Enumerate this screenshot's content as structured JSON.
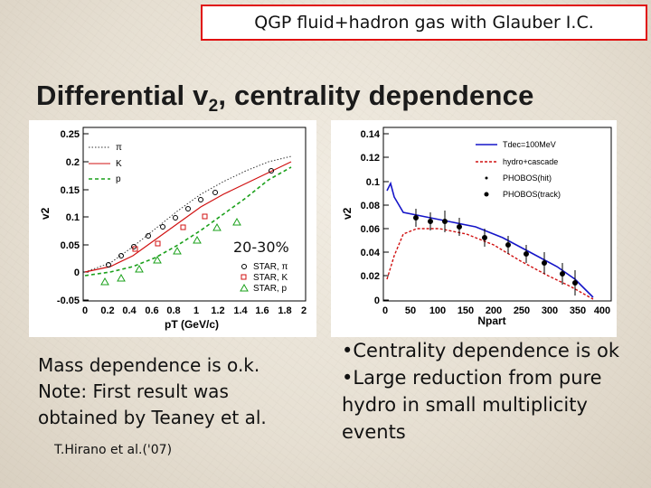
{
  "top_tag": "QGP fluid+hadron gas with Glauber I.C.",
  "title_main": "Differential v",
  "title_sub": "2",
  "title_rest": ", centrality dependence",
  "left_plot": {
    "y_axis_label": "v2",
    "x_axis_label": "pT (GeV/c)",
    "y_ticks": [
      "0.25",
      "0.2",
      "0.15",
      "0.1",
      "0.05",
      "0",
      "-0.05"
    ],
    "x_ticks": [
      "0",
      "0.2",
      "0.4",
      "0.6",
      "0.8",
      "1",
      "1.2",
      "1.4",
      "1.6",
      "1.8",
      "2"
    ],
    "legend_top": [
      "π",
      "K",
      "p"
    ],
    "legend_bottom": [
      "STAR, π",
      "STAR, K",
      "STAR, p"
    ],
    "centrality_label": "20-30%"
  },
  "right_plot": {
    "y_axis_label": "v2",
    "x_axis_label": "Npart",
    "y_ticks": [
      "0.14",
      "0.12",
      "0.1",
      "0.08",
      "0.06",
      "0.04",
      "0.02",
      "0"
    ],
    "x_ticks": [
      "0",
      "50",
      "100",
      "150",
      "200",
      "250",
      "300",
      "350",
      "400"
    ],
    "legend": [
      "Tdec=100MeV",
      "hydro+cascade",
      "PHOBOS(hit)",
      "PHOBOS(track)"
    ]
  },
  "left_text": [
    "Mass dependence is o.k.",
    "Note: First result was",
    "obtained by Teaney et al."
  ],
  "citation": "T.Hirano et al.('07)",
  "bullets": [
    "•Centrality dependence is ok",
    "•Large reduction from pure hydro in small multiplicity events"
  ],
  "colors": {
    "accent_red": "#e01010",
    "blue": "#1515c8",
    "green": "#1aa01a"
  }
}
